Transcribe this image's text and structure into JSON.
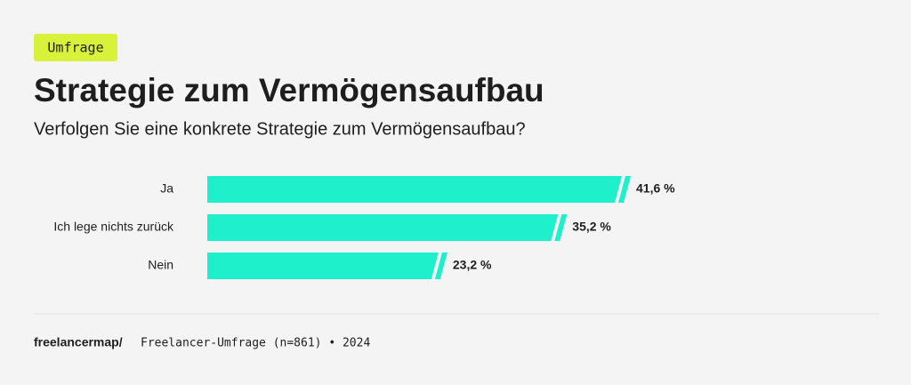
{
  "chart_data": {
    "type": "bar",
    "orientation": "horizontal",
    "tag": "Umfrage",
    "title": "Strategie zum Vermögensaufbau",
    "subtitle": "Verfolgen Sie eine konkrete Strategie zum Vermögensaufbau?",
    "categories": [
      "Ja",
      "Ich lege nichts zurück",
      "Nein"
    ],
    "values": [
      41.6,
      35.2,
      23.2
    ],
    "value_labels": [
      "41,6 %",
      "35,2 %",
      "23,2 %"
    ],
    "color": "#1ff0cc",
    "brand": "freelancermap/",
    "source": "Freelancer-Umfrage (n=861) • 2024"
  }
}
